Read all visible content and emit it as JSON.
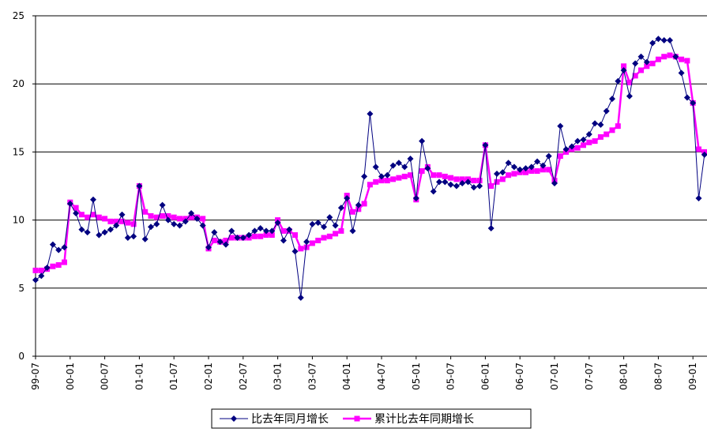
{
  "chart_data": {
    "type": "line",
    "categories": [
      "99-07",
      null,
      null,
      null,
      null,
      null,
      "00-01",
      null,
      null,
      null,
      null,
      null,
      "00-07",
      null,
      null,
      null,
      null,
      null,
      "01-01",
      null,
      null,
      null,
      null,
      null,
      "01-07",
      null,
      null,
      null,
      null,
      null,
      "02-01",
      null,
      null,
      null,
      null,
      null,
      "02-07",
      null,
      null,
      null,
      null,
      null,
      "03-01",
      null,
      null,
      null,
      null,
      null,
      "03-07",
      null,
      null,
      null,
      null,
      null,
      "04-01",
      null,
      null,
      null,
      null,
      null,
      "04-07",
      null,
      null,
      null,
      null,
      null,
      "05-01",
      null,
      null,
      null,
      null,
      null,
      "05-07",
      null,
      null,
      null,
      null,
      null,
      "06-01",
      null,
      null,
      null,
      null,
      null,
      "06-07",
      null,
      null,
      null,
      null,
      null,
      "07-01",
      null,
      null,
      null,
      null,
      null,
      "07-07",
      null,
      null,
      null,
      null,
      null,
      "08-01",
      null,
      null,
      null,
      null,
      null,
      "08-07",
      null,
      null,
      null,
      null,
      null,
      "09-01",
      null,
      null
    ],
    "series": [
      {
        "name": "比去年同月增长",
        "color": "#000080",
        "marker": "diamond",
        "values": [
          5.6,
          5.9,
          6.5,
          8.2,
          7.8,
          8.0,
          11.2,
          10.5,
          9.3,
          9.1,
          11.5,
          8.9,
          9.1,
          9.3,
          9.6,
          10.4,
          8.7,
          8.8,
          12.5,
          8.6,
          9.5,
          9.7,
          11.1,
          10.0,
          9.7,
          9.6,
          9.9,
          10.5,
          10.1,
          9.6,
          8.0,
          9.1,
          8.4,
          8.2,
          9.2,
          8.7,
          8.7,
          8.9,
          9.2,
          9.4,
          9.2,
          9.2,
          9.8,
          8.5,
          9.3,
          7.7,
          4.3,
          8.4,
          9.7,
          9.8,
          9.5,
          10.2,
          9.6,
          10.9,
          11.6,
          9.2,
          11.1,
          13.2,
          17.8,
          13.9,
          13.2,
          13.3,
          14.0,
          14.2,
          13.9,
          14.5,
          11.6,
          15.8,
          13.8,
          12.1,
          12.8,
          12.8,
          12.6,
          12.5,
          12.7,
          12.8,
          12.4,
          12.5,
          15.5,
          9.4,
          13.4,
          13.5,
          14.2,
          13.9,
          13.7,
          13.8,
          13.9,
          14.3,
          14.0,
          14.7,
          12.7,
          16.9,
          15.2,
          15.4,
          15.8,
          15.9,
          16.3,
          17.1,
          17.0,
          18.0,
          18.9,
          20.2,
          21.0,
          19.1,
          21.5,
          22.0,
          21.6,
          23.0,
          23.3,
          23.2,
          23.2,
          22.0,
          20.8,
          19.0,
          18.6,
          11.6,
          14.8
        ]
      },
      {
        "name": "累计比去年同期增长",
        "color": "#ff00ff",
        "marker": "square",
        "values": [
          6.3,
          6.3,
          6.4,
          6.6,
          6.7,
          6.9,
          11.3,
          10.9,
          10.4,
          10.2,
          10.4,
          10.2,
          10.1,
          9.9,
          9.9,
          9.9,
          9.8,
          9.7,
          12.5,
          10.6,
          10.3,
          10.2,
          10.3,
          10.3,
          10.2,
          10.1,
          10.1,
          10.2,
          10.2,
          10.1,
          7.9,
          8.5,
          8.4,
          8.5,
          8.7,
          8.7,
          8.7,
          8.7,
          8.8,
          8.8,
          8.9,
          8.9,
          10.0,
          9.2,
          9.2,
          8.9,
          7.9,
          8.0,
          8.3,
          8.5,
          8.7,
          8.8,
          9.0,
          9.2,
          11.8,
          10.6,
          10.8,
          11.2,
          12.6,
          12.8,
          12.9,
          12.9,
          13.0,
          13.1,
          13.2,
          13.3,
          11.5,
          13.6,
          13.9,
          13.3,
          13.3,
          13.2,
          13.1,
          13.0,
          13.0,
          13.0,
          12.9,
          12.9,
          15.5,
          12.5,
          12.8,
          13.0,
          13.3,
          13.4,
          13.5,
          13.5,
          13.6,
          13.6,
          13.7,
          13.7,
          12.9,
          14.7,
          15.0,
          15.2,
          15.3,
          15.5,
          15.7,
          15.8,
          16.1,
          16.3,
          16.6,
          16.9,
          21.3,
          20.1,
          20.6,
          21.0,
          21.3,
          21.5,
          21.8,
          22.0,
          22.1,
          22.0,
          21.8,
          21.7,
          18.6,
          15.2,
          15.0
        ]
      }
    ],
    "ylim": [
      0,
      25
    ],
    "yticks": [
      0,
      5,
      10,
      15,
      20,
      25
    ],
    "grid": true,
    "legend": "bottom"
  }
}
